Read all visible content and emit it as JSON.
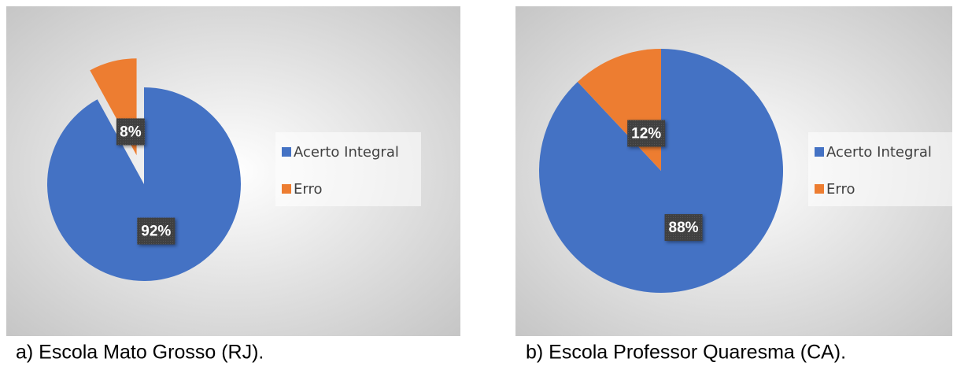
{
  "chart_data": [
    {
      "type": "pie",
      "caption": "a) Escola Mato Grosso (RJ).",
      "categories": [
        "Acerto Integral",
        "Erro"
      ],
      "values": [
        92,
        8
      ],
      "value_labels": [
        "92%",
        "8%"
      ],
      "colors": [
        "#4472c4",
        "#ed7d31"
      ],
      "legend": "right"
    },
    {
      "type": "pie",
      "caption": "b) Escola Professor Quaresma (CA).",
      "categories": [
        "Acerto Integral",
        "Erro"
      ],
      "values": [
        88,
        12
      ],
      "value_labels": [
        "88%",
        "12%"
      ],
      "colors": [
        "#4472c4",
        "#ed7d31"
      ],
      "legend": "right"
    }
  ]
}
